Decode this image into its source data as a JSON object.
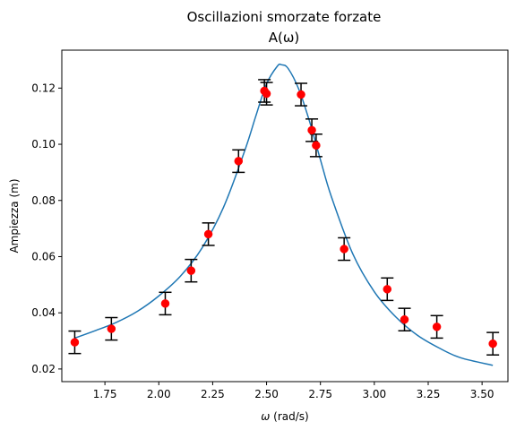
{
  "chart_data": {
    "type": "scatter",
    "title": "Oscillazioni smorzate forzate",
    "subtitle": "A(ω)",
    "xlabel_symbol": "ω",
    "xlabel_unit": " (rad/s)",
    "ylabel": "Ampiezza (m)",
    "xlim": [
      1.55,
      3.62
    ],
    "ylim": [
      0.0155,
      0.1335
    ],
    "xticks": [
      1.75,
      2.0,
      2.25,
      2.5,
      2.75,
      3.0,
      3.25,
      3.5
    ],
    "xtick_labels": [
      "1.75",
      "2.00",
      "2.25",
      "2.50",
      "2.75",
      "3.00",
      "3.25",
      "3.50"
    ],
    "yticks": [
      0.02,
      0.04,
      0.06,
      0.08,
      0.1,
      0.12
    ],
    "ytick_labels": [
      "0.02",
      "0.04",
      "0.06",
      "0.08",
      "0.10",
      "0.12"
    ],
    "grid": false,
    "series": [
      {
        "kind": "errorbar",
        "color": "#ff0000",
        "errcolor": "#000000",
        "x": [
          1.61,
          1.78,
          2.03,
          2.15,
          2.23,
          2.37,
          2.49,
          2.5,
          2.66,
          2.71,
          2.73,
          2.86,
          3.06,
          3.14,
          3.29,
          3.55
        ],
        "y": [
          0.0295,
          0.0343,
          0.0433,
          0.055,
          0.068,
          0.094,
          0.119,
          0.118,
          0.1177,
          0.105,
          0.0996,
          0.0627,
          0.0484,
          0.0376,
          0.035,
          0.029
        ],
        "yerr": [
          0.004,
          0.004,
          0.004,
          0.004,
          0.004,
          0.004,
          0.004,
          0.004,
          0.004,
          0.004,
          0.004,
          0.004,
          0.004,
          0.004,
          0.004,
          0.004
        ]
      },
      {
        "kind": "line",
        "color": "#1f77b4",
        "x": [
          1.61,
          1.7,
          1.8,
          1.9,
          2.0,
          2.1,
          2.2,
          2.3,
          2.4,
          2.45,
          2.5,
          2.55,
          2.57,
          2.6,
          2.65,
          2.7,
          2.75,
          2.8,
          2.9,
          3.0,
          3.1,
          3.2,
          3.3,
          3.4,
          3.55
        ],
        "y": [
          0.031,
          0.0335,
          0.0365,
          0.0405,
          0.046,
          0.053,
          0.063,
          0.0775,
          0.098,
          0.11,
          0.1215,
          0.1278,
          0.1283,
          0.127,
          0.1195,
          0.108,
          0.0945,
          0.0815,
          0.061,
          0.0475,
          0.0385,
          0.032,
          0.0275,
          0.024,
          0.0213
        ]
      }
    ]
  }
}
